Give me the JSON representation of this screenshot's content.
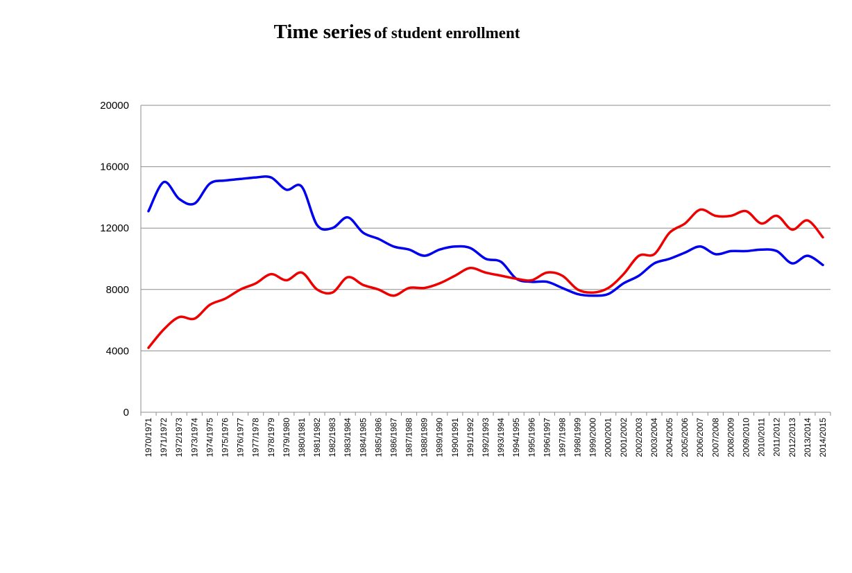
{
  "title_main": "Time series",
  "title_sub": "of student enrollment",
  "chart_data": {
    "type": "line",
    "title": "Time series of student enrollment",
    "xlabel": "",
    "ylabel": "",
    "ylim": [
      0,
      20000
    ],
    "yticks": [
      "0",
      "4000",
      "8000",
      "12000",
      "16000",
      "20000"
    ],
    "grid": "horizontal",
    "legend": "none",
    "x": [
      "1970/1971",
      "1971/1972",
      "1972/1973",
      "1973/1974",
      "1974/1975",
      "1975/1976",
      "1976/1977",
      "1977/1978",
      "1978/1979",
      "1979/1980",
      "1980/1981",
      "1981/1982",
      "1982/1983",
      "1983/1984",
      "1984/1985",
      "1985/1986",
      "1986/1987",
      "1987/1988",
      "1988/1989",
      "1989/1990",
      "1990/1991",
      "1991/1992",
      "1992/1993",
      "1993/1994",
      "1994/1995",
      "1995/1996",
      "1996/1997",
      "1997/1998",
      "1998/1999",
      "1999/2000",
      "2000/2001",
      "2001/2002",
      "2002/2003",
      "2003/2004",
      "2004/2005",
      "2005/2006",
      "2006/2007",
      "2007/2008",
      "2008/2009",
      "2009/2010",
      "2010/2011",
      "2011/2012",
      "2012/2013",
      "2013/2014",
      "2014/2015"
    ],
    "series": [
      {
        "color": "#0000ee",
        "values": [
          13100,
          15000,
          13900,
          13600,
          14900,
          15100,
          15200,
          15300,
          15300,
          14500,
          14700,
          12200,
          12000,
          12700,
          11700,
          11300,
          10800,
          10600,
          10200,
          10600,
          10800,
          10700,
          10000,
          9800,
          8700,
          8500,
          8500,
          8100,
          7700,
          7600,
          7700,
          8400,
          8900,
          9700,
          10000,
          10400,
          10800,
          10300,
          10500,
          10500,
          10600,
          10500,
          9700,
          10200,
          9600
        ]
      },
      {
        "color": "#ee0000",
        "values": [
          4200,
          5400,
          6200,
          6100,
          7000,
          7400,
          8000,
          8400,
          9000,
          8600,
          9100,
          8000,
          7800,
          8800,
          8300,
          8000,
          7600,
          8100,
          8100,
          8400,
          8900,
          9400,
          9100,
          8900,
          8700,
          8600,
          9100,
          8900,
          8000,
          7800,
          8100,
          9000,
          10200,
          10300,
          11700,
          12300,
          13200,
          12800,
          12800,
          13100,
          12300,
          12800,
          11900,
          12500,
          11400
        ]
      }
    ]
  }
}
